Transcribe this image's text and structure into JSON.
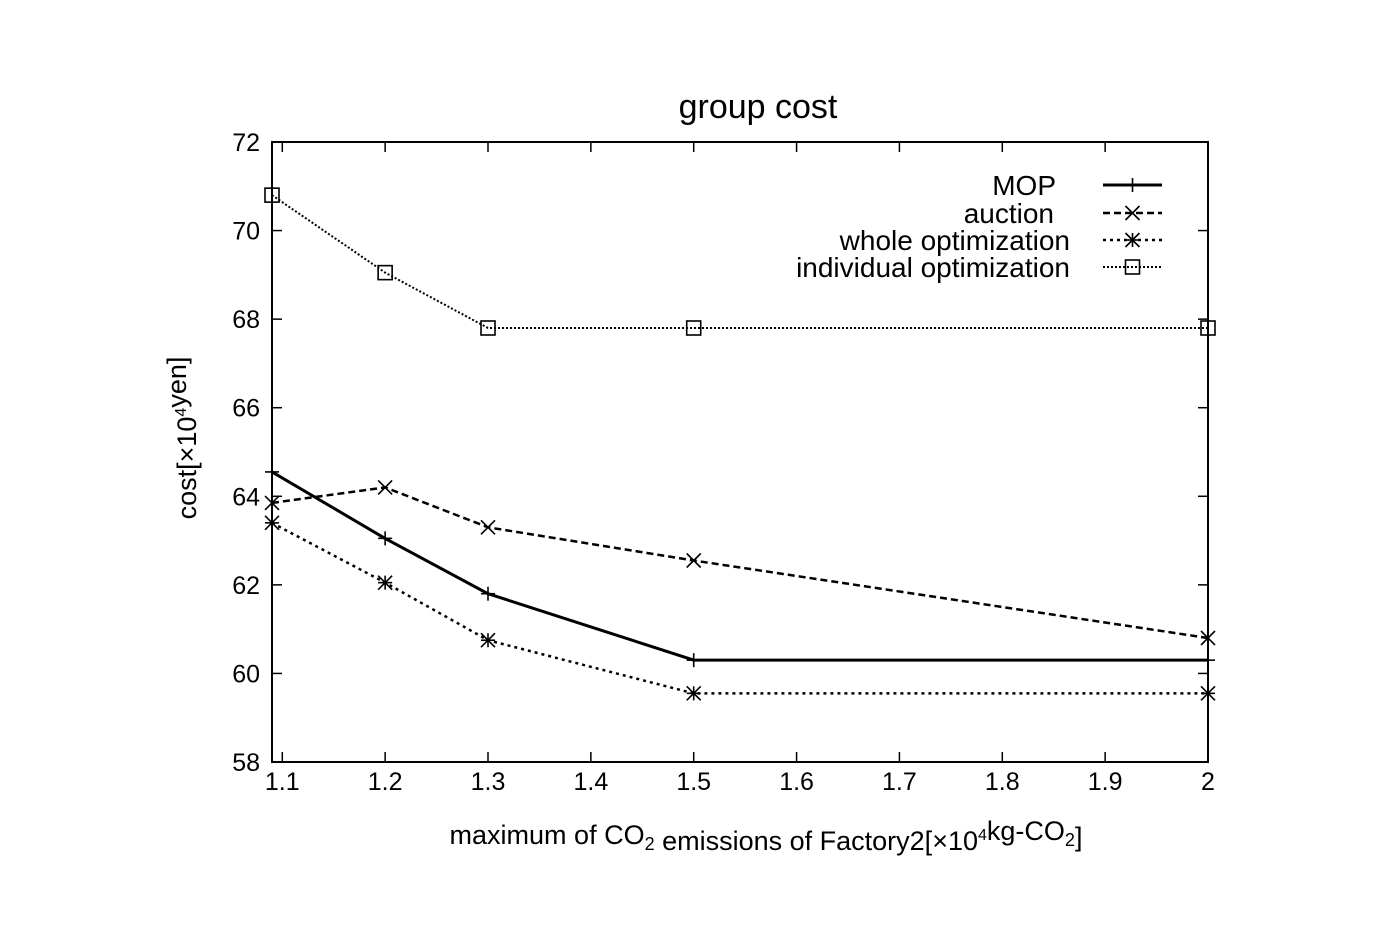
{
  "chart_data": {
    "type": "line",
    "title": "group cost",
    "xlabel": {
      "parts": [
        {
          "text": "maximum of CO",
          "style": "normal"
        },
        {
          "text": "2",
          "style": "sub"
        },
        {
          "text": " emissions of Factory2[×10",
          "style": "normal"
        },
        {
          "text": "4",
          "style": "sup"
        },
        {
          "text": "kg-CO",
          "style": "normal"
        },
        {
          "text": "2",
          "style": "sub"
        },
        {
          "text": "]",
          "style": "normal"
        }
      ]
    },
    "ylabel": {
      "parts": [
        {
          "text": "cost[×10",
          "style": "normal"
        },
        {
          "text": "4",
          "style": "sup"
        },
        {
          "text": "yen]",
          "style": "normal"
        }
      ]
    },
    "xlim": [
      1.09,
      2.0
    ],
    "ylim": [
      58,
      72
    ],
    "x_ticks": [
      {
        "value": 1.1,
        "label": "1.1"
      },
      {
        "value": 1.2,
        "label": "1.2"
      },
      {
        "value": 1.3,
        "label": "1.3"
      },
      {
        "value": 1.4,
        "label": "1.4"
      },
      {
        "value": 1.5,
        "label": "1.5"
      },
      {
        "value": 1.6,
        "label": "1.6"
      },
      {
        "value": 1.7,
        "label": "1.7"
      },
      {
        "value": 1.8,
        "label": "1.8"
      },
      {
        "value": 1.9,
        "label": "1.9"
      },
      {
        "value": 2.0,
        "label": "2"
      }
    ],
    "y_ticks": [
      {
        "value": 58,
        "label": "58"
      },
      {
        "value": 60,
        "label": "60"
      },
      {
        "value": 62,
        "label": "62"
      },
      {
        "value": 64,
        "label": "64"
      },
      {
        "value": 66,
        "label": "66"
      },
      {
        "value": 68,
        "label": "68"
      },
      {
        "value": 70,
        "label": "70"
      },
      {
        "value": 72,
        "label": "72"
      }
    ],
    "grid": false,
    "legend_position": "top-right",
    "series": [
      {
        "name": "MOP",
        "line": "solid",
        "marker": "plus",
        "x": [
          1.09,
          1.2,
          1.3,
          1.5,
          2.0
        ],
        "y": [
          64.55,
          63.05,
          61.8,
          60.3,
          60.3
        ]
      },
      {
        "name": "auction",
        "line": "dashed",
        "marker": "cross",
        "x": [
          1.09,
          1.2,
          1.3,
          1.5,
          2.0
        ],
        "y": [
          63.85,
          64.2,
          63.3,
          62.55,
          60.8
        ]
      },
      {
        "name": "whole optimization",
        "line": "dotted",
        "marker": "star",
        "x": [
          1.09,
          1.2,
          1.3,
          1.5,
          2.0
        ],
        "y": [
          63.4,
          62.05,
          60.75,
          59.55,
          59.55
        ]
      },
      {
        "name": "individual optimization",
        "line": "dense-dotted",
        "marker": "square",
        "x": [
          1.09,
          1.2,
          1.3,
          1.5,
          2.0
        ],
        "y": [
          70.8,
          69.05,
          67.8,
          67.8,
          67.8
        ]
      }
    ]
  }
}
